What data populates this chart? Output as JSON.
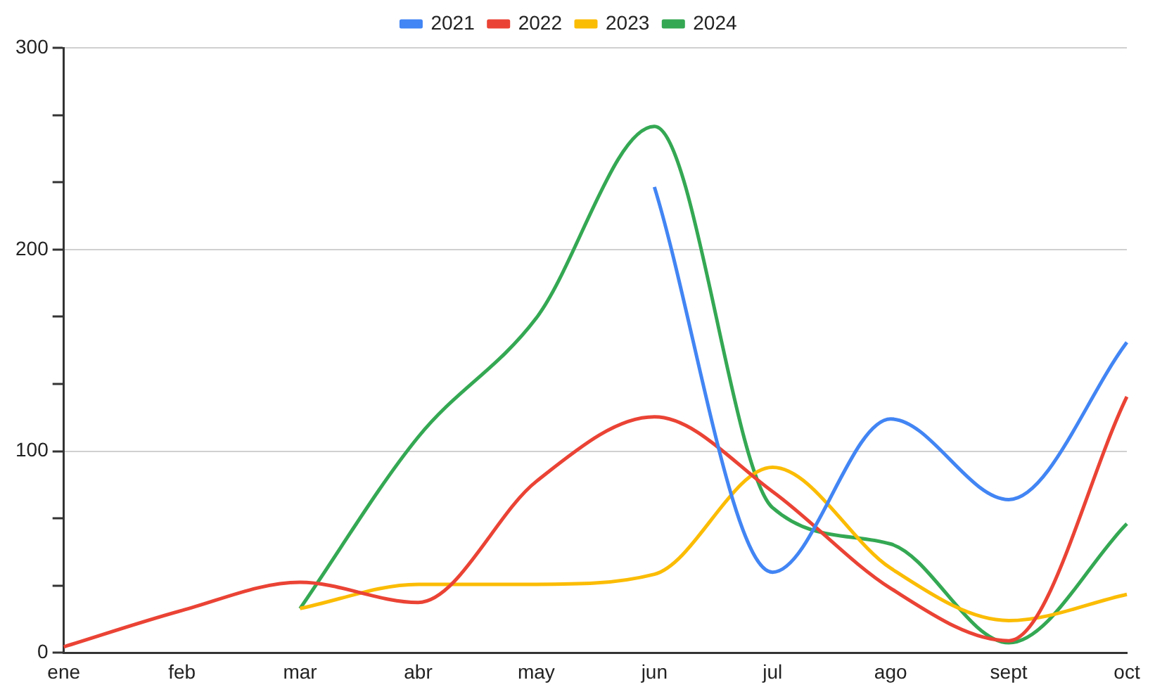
{
  "chart_data": {
    "type": "line",
    "categories": [
      "ene",
      "feb",
      "mar",
      "abr",
      "may",
      "jun",
      "jul",
      "ago",
      "sept",
      "oct"
    ],
    "series": [
      {
        "name": "2021",
        "color": "#4285f4",
        "values": [
          null,
          null,
          null,
          null,
          null,
          231,
          40,
          116,
          76,
          154
        ]
      },
      {
        "name": "2022",
        "color": "#ea4335",
        "values": [
          3,
          21,
          35,
          25,
          85,
          117,
          80,
          32,
          6,
          127
        ]
      },
      {
        "name": "2023",
        "color": "#fbbc04",
        "values": [
          null,
          null,
          22,
          34,
          34,
          39,
          92,
          42,
          16,
          29
        ]
      },
      {
        "name": "2024",
        "color": "#34a853",
        "values": [
          null,
          null,
          22,
          107,
          166,
          261,
          72,
          54,
          5,
          64
        ]
      }
    ],
    "ylim": [
      0,
      300
    ],
    "yticks": [
      0,
      {
        "value": 33.33,
        "label": null
      },
      {
        "value": 66.67,
        "label": null
      },
      100,
      {
        "value": 133.33,
        "label": null
      },
      {
        "value": 166.67,
        "label": null
      },
      200,
      {
        "value": 233.33,
        "label": null
      },
      {
        "value": 266.67,
        "label": null
      },
      300
    ],
    "grid": "y",
    "legend": "top",
    "marker": "none",
    "line_style": "solid"
  }
}
